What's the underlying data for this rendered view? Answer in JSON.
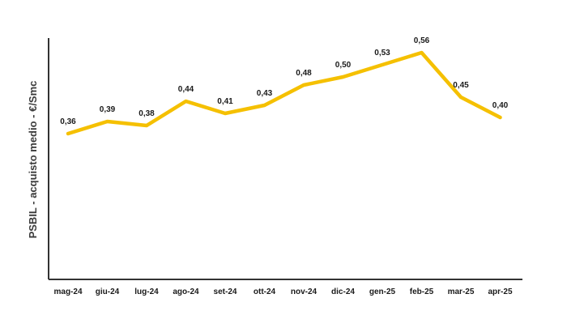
{
  "chart_data": {
    "type": "line",
    "title": "",
    "xlabel": "",
    "ylabel": "PSBIL - acquisto medio - €/Smc",
    "categories": [
      "mag-24",
      "giu-24",
      "lug-24",
      "ago-24",
      "set-24",
      "ott-24",
      "nov-24",
      "dic-24",
      "gen-25",
      "feb-25",
      "mar-25",
      "apr-25"
    ],
    "series": [
      {
        "values": [
          0.36,
          0.39,
          0.38,
          0.44,
          0.41,
          0.43,
          0.48,
          0.5,
          0.53,
          0.56,
          0.45,
          0.4
        ],
        "labels": [
          "0,36",
          "0,39",
          "0,38",
          "0,44",
          "0,41",
          "0,43",
          "0,48",
          "0,50",
          "0,53",
          "0,56",
          "0,45",
          "0,40"
        ],
        "color": "#f5c000"
      }
    ],
    "ylim": [
      0,
      0.6
    ],
    "grid": false,
    "legend": "none",
    "axis_color": "#333333"
  }
}
